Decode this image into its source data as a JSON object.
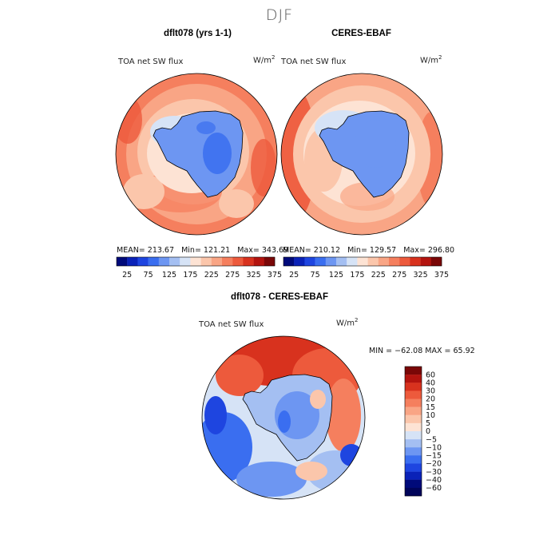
{
  "season": "DJF",
  "panels": [
    {
      "title": "dflt078 (yrs 1-1)",
      "variable": "TOA net SW flux",
      "units_base": "W/m",
      "units_exp": "2",
      "mean": "MEAN= 213.67",
      "min": "Min= 121.21",
      "max": "Max= 343.69"
    },
    {
      "title": "CERES-EBAF",
      "variable": "TOA net SW flux",
      "units_base": "W/m",
      "units_exp": "2",
      "mean": "MEAN= 210.12",
      "min": "Min= 129.57",
      "max": "Max= 296.80"
    }
  ],
  "top_colorbar": {
    "labels": [
      "25",
      "75",
      "125",
      "175",
      "225",
      "275",
      "325",
      "375"
    ],
    "colors": [
      "#000a7a",
      "#0a22b8",
      "#1e45e0",
      "#3a6ef0",
      "#6d96f2",
      "#a4bff2",
      "#d6e3f6",
      "#fde3d4",
      "#fbc6ab",
      "#f9a585",
      "#f57f5e",
      "#ed5a3c",
      "#d8321e",
      "#b3140f",
      "#7a0707"
    ]
  },
  "diff_panel": {
    "title": "dflt078 - CERES-EBAF",
    "variable": "TOA net SW flux",
    "units_base": "W/m",
    "units_exp": "2",
    "minmax": "MIN = −62.08  MAX =   65.92",
    "colorbar": {
      "labels": [
        "60",
        "40",
        "30",
        "20",
        "15",
        "10",
        "5",
        "0",
        "−5",
        "−10",
        "−15",
        "−20",
        "−30",
        "−40",
        "−60"
      ],
      "colors": [
        "#7a0707",
        "#b3140f",
        "#d8321e",
        "#ed5a3c",
        "#f57f5e",
        "#f9a585",
        "#fbc6ab",
        "#fde3d4",
        "#d6e3f6",
        "#a4bff2",
        "#6d96f2",
        "#3a6ef0",
        "#1e45e0",
        "#0a22b8",
        "#000a7a",
        "#00045a"
      ]
    }
  }
}
